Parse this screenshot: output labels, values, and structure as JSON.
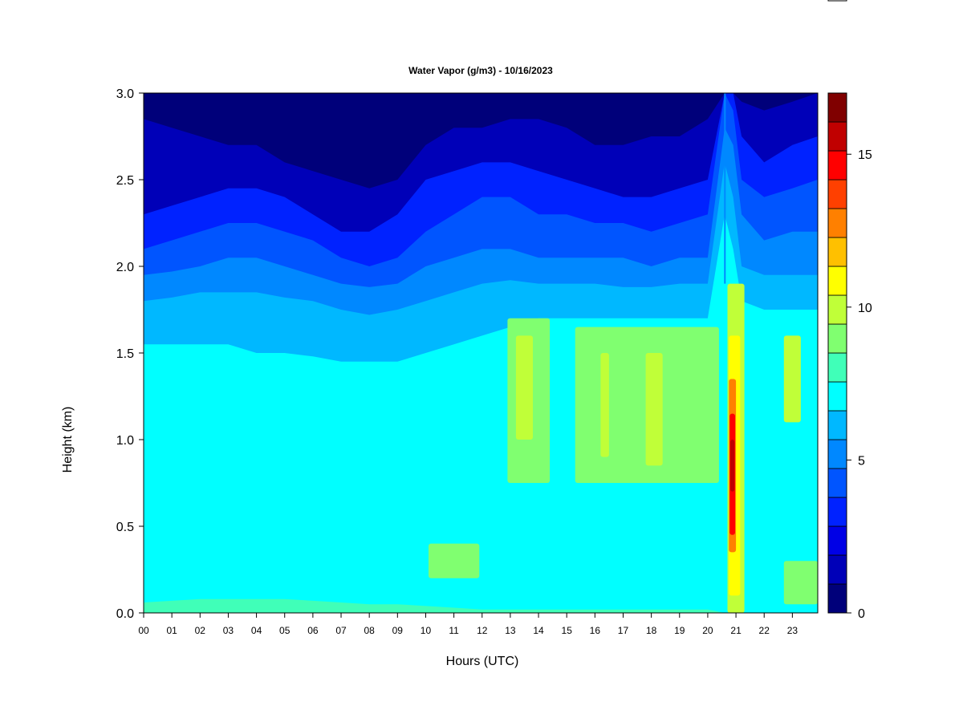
{
  "chart_data": {
    "type": "heatmap",
    "title": "Water Vapor (g/m3) - 10/16/2023",
    "xlabel": "Hours (UTC)",
    "ylabel": "Height (km)",
    "x_ticks": [
      "00",
      "01",
      "02",
      "03",
      "04",
      "05",
      "06",
      "07",
      "08",
      "09",
      "10",
      "11",
      "12",
      "13",
      "14",
      "15",
      "16",
      "17",
      "18",
      "19",
      "20",
      "21",
      "22",
      "23"
    ],
    "y_ticks": [
      "0.0",
      "0.5",
      "1.0",
      "1.5",
      "2.0",
      "2.5",
      "3.0"
    ],
    "xlim": [
      0,
      23.9
    ],
    "ylim": [
      0,
      3.0
    ],
    "colorbar": {
      "ticks": [
        "0",
        "5",
        "10",
        "15"
      ],
      "range": [
        0,
        17
      ],
      "level_colors": [
        "#00007a",
        "#0000b8",
        "#0000e6",
        "#0022ff",
        "#0055ff",
        "#0088ff",
        "#00b8ff",
        "#00ffff",
        "#40ffb8",
        "#80ff70",
        "#c0ff38",
        "#ffff00",
        "#ffc000",
        "#ff8000",
        "#ff4000",
        "#ff0000",
        "#c00000",
        "#800000"
      ]
    },
    "layers": {
      "hours": [
        0,
        1,
        2,
        3,
        4,
        5,
        6,
        7,
        8,
        9,
        10,
        11,
        12,
        13,
        14,
        15,
        16,
        17,
        18,
        19,
        20,
        20.6,
        20.9,
        21.2,
        22,
        23,
        23.9
      ],
      "boundaries_km": [
        {
          "level": 1,
          "heights": [
            2.85,
            2.8,
            2.75,
            2.7,
            2.7,
            2.6,
            2.55,
            2.5,
            2.45,
            2.5,
            2.7,
            2.8,
            2.8,
            2.85,
            2.85,
            2.8,
            2.7,
            2.7,
            2.75,
            2.75,
            2.85,
            3.0,
            3.0,
            2.95,
            2.9,
            2.95,
            3.0
          ]
        },
        {
          "level": 3,
          "heights": [
            2.3,
            2.35,
            2.4,
            2.45,
            2.45,
            2.4,
            2.3,
            2.2,
            2.2,
            2.3,
            2.5,
            2.55,
            2.6,
            2.6,
            2.55,
            2.5,
            2.45,
            2.4,
            2.4,
            2.45,
            2.5,
            3.0,
            3.0,
            2.75,
            2.6,
            2.7,
            2.75
          ]
        },
        {
          "level": 4,
          "heights": [
            2.1,
            2.15,
            2.2,
            2.25,
            2.25,
            2.2,
            2.15,
            2.05,
            2.0,
            2.05,
            2.2,
            2.3,
            2.4,
            2.4,
            2.3,
            2.3,
            2.25,
            2.25,
            2.2,
            2.25,
            2.3,
            3.0,
            2.9,
            2.5,
            2.4,
            2.45,
            2.5
          ]
        },
        {
          "level": 5,
          "heights": [
            1.95,
            1.97,
            2.0,
            2.05,
            2.05,
            2.0,
            1.95,
            1.9,
            1.88,
            1.9,
            2.0,
            2.05,
            2.1,
            2.1,
            2.05,
            2.05,
            2.05,
            2.05,
            2.0,
            2.05,
            2.05,
            2.8,
            2.7,
            2.3,
            2.15,
            2.2,
            2.2
          ]
        },
        {
          "level": 6,
          "heights": [
            1.8,
            1.82,
            1.85,
            1.85,
            1.85,
            1.82,
            1.8,
            1.75,
            1.72,
            1.75,
            1.8,
            1.85,
            1.9,
            1.92,
            1.9,
            1.9,
            1.9,
            1.88,
            1.88,
            1.9,
            1.9,
            2.6,
            2.4,
            2.0,
            1.95,
            1.95,
            1.95
          ]
        },
        {
          "level": 7,
          "heights": [
            1.55,
            1.55,
            1.55,
            1.55,
            1.5,
            1.5,
            1.48,
            1.45,
            1.45,
            1.45,
            1.5,
            1.55,
            1.6,
            1.65,
            1.7,
            1.7,
            1.7,
            1.7,
            1.7,
            1.7,
            1.7,
            2.3,
            2.1,
            1.8,
            1.75,
            1.75,
            1.75
          ]
        },
        {
          "level": 8,
          "heights": [
            0.06,
            0.07,
            0.08,
            0.08,
            0.08,
            0.08,
            0.07,
            0.06,
            0.05,
            0.05,
            0.04,
            0.03,
            0.02,
            0.02,
            0.02,
            0.02,
            0.02,
            0.02,
            0.02,
            0.02,
            0.02,
            0.0,
            0.0,
            0.0,
            0.0,
            0.0,
            0.0
          ]
        }
      ]
    },
    "moist_patches": [
      {
        "hours": [
          10.1,
          11.9
        ],
        "heights_km": [
          0.2,
          0.4
        ],
        "level": 9
      },
      {
        "hours": [
          12.9,
          14.4
        ],
        "heights_km": [
          0.75,
          1.7
        ],
        "level": 9
      },
      {
        "hours": [
          13.2,
          13.8
        ],
        "heights_km": [
          1.0,
          1.6
        ],
        "level": 10
      },
      {
        "hours": [
          15.3,
          20.4
        ],
        "heights_km": [
          0.75,
          1.65
        ],
        "level": 9
      },
      {
        "hours": [
          16.2,
          16.5
        ],
        "heights_km": [
          0.9,
          1.5
        ],
        "level": 10
      },
      {
        "hours": [
          17.8,
          18.4
        ],
        "heights_km": [
          0.85,
          1.5
        ],
        "level": 10
      },
      {
        "hours": [
          22.7,
          23.9
        ],
        "heights_km": [
          0.05,
          0.3
        ],
        "level": 9
      },
      {
        "hours": [
          22.7,
          23.3
        ],
        "heights_km": [
          1.1,
          1.6
        ],
        "level": 10
      },
      {
        "hours": [
          20.7,
          21.3
        ],
        "heights_km": [
          0.0,
          1.9
        ],
        "level": 10
      },
      {
        "hours": [
          20.75,
          21.15
        ],
        "heights_km": [
          0.1,
          1.6
        ],
        "level": 11
      },
      {
        "hours": [
          20.75,
          21.0
        ],
        "heights_km": [
          0.35,
          1.35
        ],
        "level": 13
      },
      {
        "hours": [
          20.78,
          20.97
        ],
        "heights_km": [
          0.45,
          1.15
        ],
        "level": 15
      },
      {
        "hours": [
          20.8,
          20.95
        ],
        "heights_km": [
          0.7,
          1.0
        ],
        "level": 16
      }
    ]
  }
}
